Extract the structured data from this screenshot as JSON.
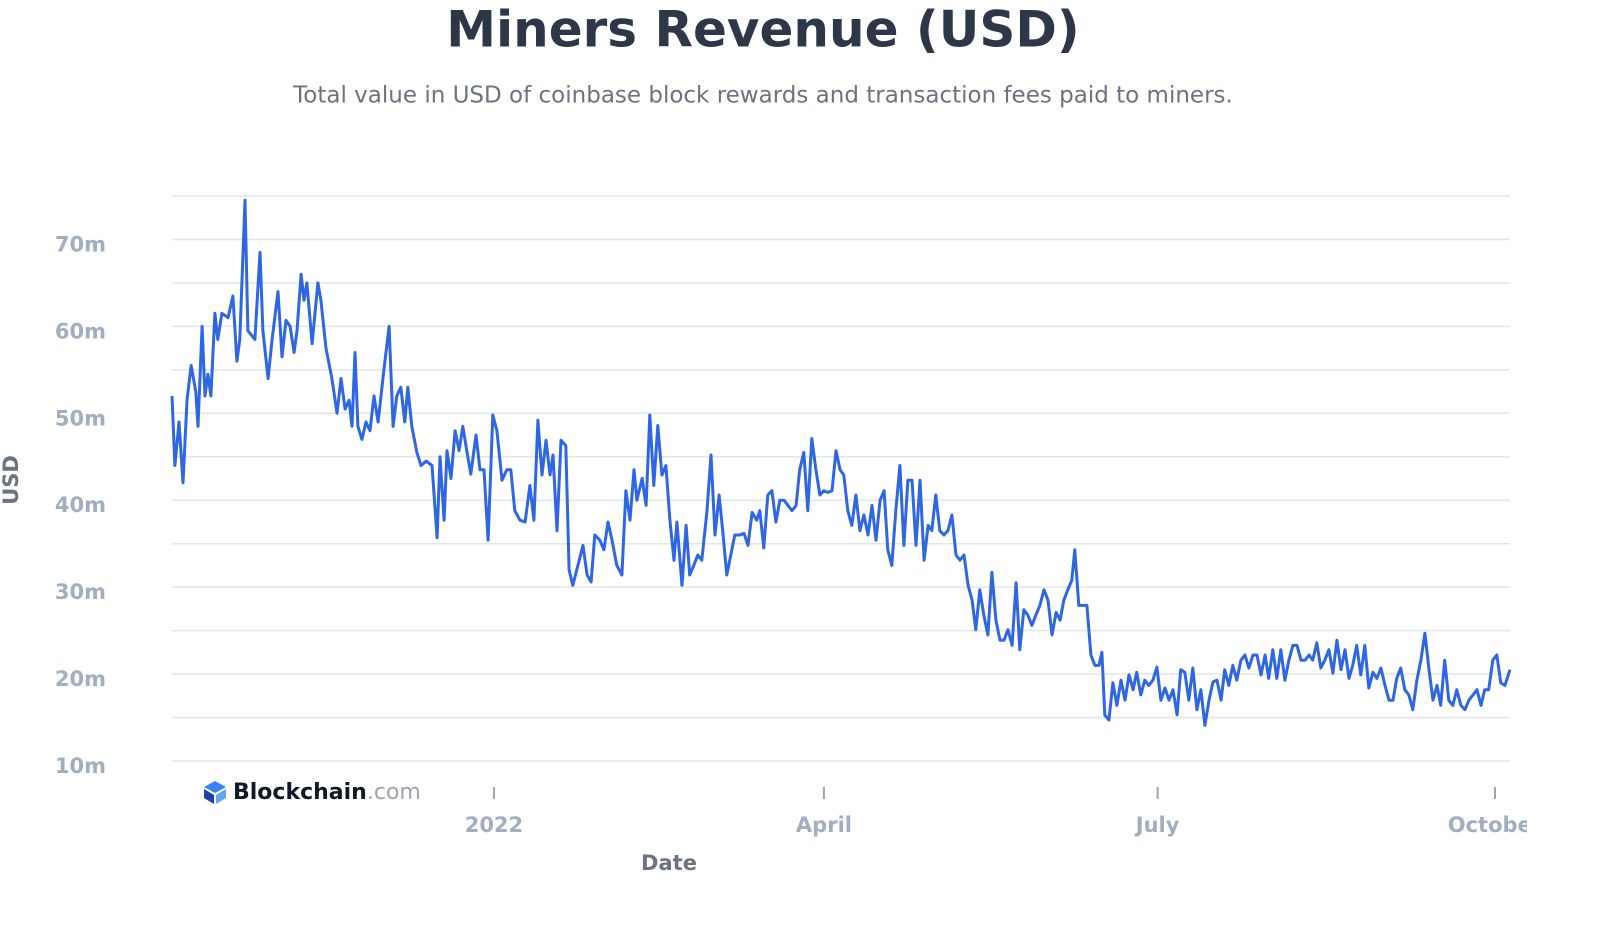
{
  "chart_data": {
    "type": "line",
    "title": "Miners Revenue (USD)",
    "subtitle": "Total value in USD of coinbase block rewards and transaction fees paid to miners.",
    "y_label": "USD",
    "x_label": "Date",
    "watermark": [
      "Blockchain",
      ".com"
    ],
    "ylim": [
      10,
      75
    ],
    "yticks": [
      {
        "value": 10,
        "label": "10m"
      },
      {
        "value": 20,
        "label": "20m"
      },
      {
        "value": 30,
        "label": "30m"
      },
      {
        "value": 40,
        "label": "40m"
      },
      {
        "value": 50,
        "label": "50m"
      },
      {
        "value": 60,
        "label": "60m"
      },
      {
        "value": 70,
        "label": "70m"
      }
    ],
    "grid": true,
    "grid_lines": [
      10,
      15,
      20,
      25,
      30,
      35,
      40,
      45,
      50,
      55,
      60,
      65,
      70,
      75
    ],
    "xlim": [
      -87.8,
      277.1
    ],
    "xticks": [
      {
        "value": 0,
        "label": "2022"
      },
      {
        "value": 90,
        "label": "April"
      },
      {
        "value": 181,
        "label": "July"
      },
      {
        "value": 273,
        "label": "October"
      }
    ],
    "x": [
      -87.8,
      -87.0,
      -85.9,
      -84.8,
      -83.7,
      -82.6,
      -81.3,
      -80.7,
      -79.6,
      -78.8,
      -78.0,
      -77.2,
      -76.1,
      -75.3,
      -74.2,
      -72.5,
      -71.2,
      -70.1,
      -69.3,
      -67.9,
      -67.1,
      -65.2,
      -63.8,
      -63.0,
      -61.6,
      -60.5,
      -58.9,
      -57.8,
      -56.7,
      -55.6,
      -54.5,
      -53.7,
      -52.6,
      -51.8,
      -51.0,
      -49.6,
      -48.0,
      -47.2,
      -45.8,
      -44.2,
      -42.8,
      -41.7,
      -40.6,
      -39.5,
      -38.7,
      -37.9,
      -37.1,
      -36.0,
      -34.9,
      -33.8,
      -32.7,
      -31.6,
      -30.0,
      -28.6,
      -27.5,
      -26.5,
      -25.4,
      -24.3,
      -23.5,
      -22.4,
      -21.0,
      -19.9,
      -18.5,
      -16.9,
      -15.5,
      -14.7,
      -13.6,
      -12.8,
      -11.7,
      -10.6,
      -9.5,
      -8.5,
      -7.4,
      -6.3,
      -4.9,
      -3.8,
      -2.7,
      -1.6,
      -0.3,
      0.8,
      2.2,
      3.5,
      4.6,
      5.7,
      7.1,
      8.5,
      9.8,
      10.9,
      12.0,
      13.1,
      14.2,
      15.3,
      16.1,
      17.2,
      18.3,
      19.6,
      20.5,
      21.5,
      22.9,
      24.3,
      25.4,
      26.5,
      27.5,
      28.9,
      30.0,
      31.1,
      32.2,
      33.5,
      34.9,
      36.0,
      37.1,
      38.2,
      39.0,
      40.4,
      41.5,
      42.5,
      43.6,
      44.7,
      45.8,
      46.9,
      48.0,
      49.1,
      49.9,
      51.3,
      52.4,
      53.4,
      54.5,
      55.6,
      56.7,
      58.1,
      59.2,
      60.3,
      61.4,
      62.4,
      63.5,
      64.6,
      65.7,
      67.1,
      68.2,
      69.3,
      70.4,
      71.7,
      72.5,
      73.6,
      74.7,
      75.8,
      76.9,
      78.0,
      79.1,
      80.2,
      81.3,
      82.4,
      83.4,
      84.5,
      85.6,
      86.7,
      87.8,
      88.9,
      90.0,
      91.1,
      92.2,
      93.3,
      94.4,
      95.4,
      96.5,
      97.6,
      98.7,
      99.8,
      100.9,
      102.0,
      103.1,
      104.2,
      105.3,
      106.4,
      107.4,
      108.5,
      109.6,
      110.7,
      111.8,
      112.9,
      114.0,
      115.1,
      116.2,
      117.3,
      118.4,
      119.4,
      120.5,
      121.6,
      122.7,
      123.8,
      124.9,
      126.0,
      127.1,
      128.2,
      129.3,
      130.4,
      131.4,
      132.5,
      133.6,
      134.7,
      135.8,
      136.9,
      138.0,
      139.1,
      140.2,
      141.3,
      142.4,
      143.4,
      144.5,
      145.6,
      146.7,
      147.8,
      148.9,
      150.0,
      151.1,
      152.2,
      153.3,
      154.4,
      155.4,
      156.5,
      157.6,
      158.4,
      159.5,
      160.6,
      161.7,
      162.8,
      163.9,
      165.0,
      165.8,
      166.6,
      167.7,
      168.8,
      169.9,
      171.0,
      172.1,
      173.2,
      174.3,
      175.3,
      176.4,
      177.5,
      178.6,
      179.7,
      180.8,
      181.9,
      183.0,
      184.1,
      185.2,
      186.3,
      187.3,
      188.4,
      189.5,
      190.6,
      191.7,
      192.8,
      193.9,
      195.0,
      196.1,
      197.2,
      198.3,
      199.3,
      200.4,
      201.5,
      202.6,
      203.7,
      204.8,
      205.9,
      207.0,
      208.1,
      209.2,
      210.3,
      211.3,
      212.4,
      213.5,
      214.6,
      215.7,
      216.8,
      217.9,
      219.0,
      220.1,
      221.2,
      222.3,
      223.3,
      224.4,
      225.5,
      226.6,
      227.7,
      228.8,
      229.9,
      231.0,
      232.1,
      233.2,
      234.2,
      235.3,
      236.4,
      237.5,
      238.6,
      239.7,
      240.8,
      241.9,
      243.0,
      244.1,
      245.2,
      246.2,
      247.3,
      248.4,
      249.5,
      250.6,
      251.7,
      252.8,
      253.9,
      255.0,
      256.1,
      257.2,
      258.2,
      259.3,
      260.4,
      261.5,
      262.6,
      263.7,
      264.8,
      265.9,
      267.0,
      268.1,
      269.2,
      270.2,
      271.3,
      272.4,
      273.5,
      274.6,
      275.7,
      277.1
    ],
    "series": [
      {
        "name": "Miners Revenue",
        "color": "#2f66e3",
        "values": [
          52,
          44,
          49,
          42,
          51.5,
          55.5,
          52.5,
          48.5,
          60,
          52,
          54.5,
          52,
          61.5,
          58.5,
          61.5,
          61,
          63.5,
          56,
          58.5,
          74.5,
          59.5,
          58.5,
          68.5,
          59.5,
          54,
          58.5,
          64,
          56.5,
          60.7,
          60,
          57,
          59.5,
          66,
          63,
          65,
          58,
          65,
          63,
          57.5,
          54,
          50,
          54,
          50.5,
          51.5,
          48.5,
          57,
          48.5,
          47,
          49,
          48,
          52,
          49,
          55,
          60,
          48.5,
          52,
          53,
          49,
          53,
          48.5,
          45.5,
          44,
          44.5,
          44,
          35.7,
          45,
          37.7,
          45.7,
          42.5,
          48,
          45.7,
          48.5,
          45.7,
          43,
          47.5,
          43.5,
          43.5,
          35.4,
          49.8,
          48,
          42.3,
          43.5,
          43.5,
          38.8,
          37.7,
          37.5,
          41.7,
          37.7,
          49.2,
          42.9,
          46.9,
          42.9,
          45.2,
          36.5,
          46.9,
          46.3,
          32,
          30.2,
          32.5,
          34.8,
          31.4,
          30.6,
          36,
          35.4,
          34.3,
          37.5,
          35.4,
          32.5,
          31.4,
          41.1,
          37.7,
          43.5,
          40,
          42.5,
          39.4,
          49.8,
          41.7,
          48.6,
          42.9,
          44,
          37.7,
          33.1,
          37.5,
          30.2,
          37.1,
          31.4,
          32.5,
          33.7,
          33.1,
          38.8,
          45.2,
          36,
          40.6,
          36.5,
          31.4,
          33.7,
          36,
          36,
          36.2,
          34.8,
          38.6,
          37.7,
          38.8,
          34.5,
          40.6,
          41.1,
          37.5,
          40,
          40,
          39.4,
          38.8,
          39.4,
          43.5,
          45.5,
          38.8,
          47.1,
          43.5,
          40.6,
          41.1,
          40.9,
          41.1,
          45.7,
          43.5,
          42.9,
          38.8,
          37.1,
          40.6,
          36.5,
          38.3,
          36,
          39.4,
          35.4,
          40,
          41.1,
          34.3,
          32.5,
          38.8,
          44,
          34.8,
          42.3,
          42.3,
          34.8,
          42.3,
          33.1,
          37.1,
          36.5,
          40.6,
          36.5,
          36,
          36.5,
          38.3,
          33.7,
          33.1,
          33.7,
          30.2,
          28.5,
          25.1,
          29.7,
          26.8,
          24.5,
          31.7,
          26.2,
          23.9,
          23.9,
          25.1,
          23.3,
          30.5,
          22.8,
          27.4,
          26.8,
          25.6,
          26.8,
          27.9,
          29.7,
          28.5,
          24.5,
          27.1,
          26.2,
          28.5,
          29.7,
          30.8,
          34.3,
          27.9,
          27.9,
          27.9,
          22.2,
          21,
          21,
          22.5,
          15.3,
          14.7,
          19,
          16.4,
          19.3,
          17,
          19.9,
          18.2,
          20.2,
          17.6,
          19.3,
          18.7,
          19.3,
          20.8,
          17,
          18.4,
          17,
          18.2,
          15.3,
          20.5,
          20.2,
          17,
          20.7,
          15.9,
          18.2,
          14.1,
          17,
          19.1,
          19.3,
          17,
          20.5,
          18.7,
          21,
          19.3,
          21.6,
          22.2,
          20.7,
          22.2,
          22.2,
          19.9,
          22.2,
          19.5,
          22.8,
          19.5,
          22.8,
          19.3,
          21.6,
          23.3,
          23.3,
          21.6,
          21.6,
          22.2,
          21.6,
          23.6,
          20.7,
          21.6,
          22.8,
          20.1,
          23.9,
          20.5,
          22.8,
          19.5,
          21,
          23.3,
          19.9,
          23.3,
          18.4,
          20.2,
          19.5,
          20.7,
          18.7,
          17,
          17,
          19.5,
          20.7,
          18.2,
          17.6,
          15.9,
          19.3,
          21.6,
          24.7,
          20.5,
          17,
          18.7,
          16.4,
          21.6,
          17,
          16.4,
          18.2,
          16.4,
          15.9,
          17,
          17.6,
          18.2,
          16.4,
          18.2,
          18.2,
          21.6,
          22.2,
          19,
          18.7,
          20.5
        ]
      }
    ]
  }
}
